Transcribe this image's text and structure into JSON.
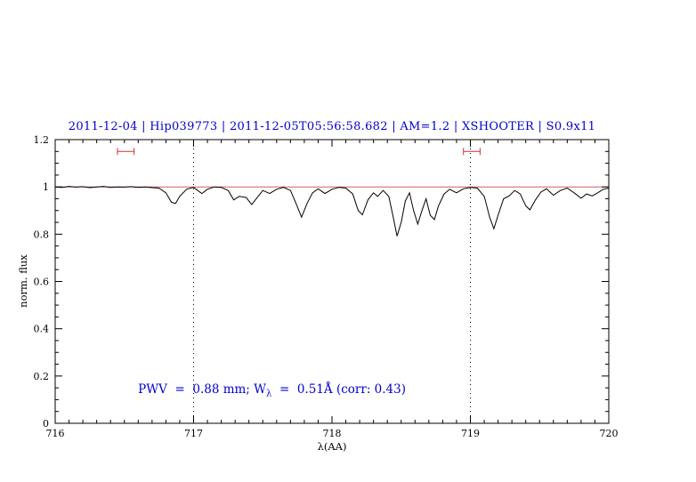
{
  "title": "2011-12-04 | Hip039773 | 2011-12-05T05:56:58.682 | AM=1.2 | XSHOOTER | S0.9x11",
  "annotation": {
    "part1": "PWV  =  0.88 mm; W",
    "sub": "λ",
    "part2": "  =  0.51Å (corr: 0.43)"
  },
  "chart_data": {
    "type": "line",
    "title": "2011-12-04 | Hip039773 | 2011-12-05T05:56:58.682 | AM=1.2 | XSHOOTER | S0.9x11",
    "xlabel": "λ(AA)",
    "ylabel": "norm. flux",
    "xlim": [
      716,
      720
    ],
    "ylim": [
      0,
      1.2
    ],
    "x_ticks": [
      716,
      717,
      718,
      719,
      720
    ],
    "x_tick_labels": [
      "716",
      "717",
      "718",
      "719",
      "720"
    ],
    "y_ticks": [
      0,
      0.2,
      0.4,
      0.6,
      0.8,
      1,
      1.2
    ],
    "y_tick_labels": [
      "0",
      "0.2",
      "0.4",
      "0.6",
      "0.8",
      "1",
      "1.2"
    ],
    "x_minor_step": 0.1,
    "y_minor_step": 0.05,
    "grid": "off",
    "legend": "none",
    "dotted_vlines": [
      717,
      719
    ],
    "continuum_y": 1.0,
    "range_markers": [
      {
        "x1": 716.45,
        "x2": 716.57,
        "y": 1.15
      },
      {
        "x1": 718.95,
        "x2": 719.07,
        "y": 1.15
      }
    ],
    "colors": {
      "title": "#0000cd",
      "annotation": "#0000cd",
      "spectrum": "#000000",
      "continuum": "#cc4444",
      "markers": "#cc3333",
      "axis": "#000000"
    },
    "series": [
      {
        "name": "normalized spectrum",
        "color": "#000000",
        "points": [
          [
            716.0,
            1.0
          ],
          [
            716.05,
            0.998
          ],
          [
            716.1,
            1.002
          ],
          [
            716.15,
            0.999
          ],
          [
            716.2,
            1.001
          ],
          [
            716.25,
            0.997
          ],
          [
            716.3,
            1.0
          ],
          [
            716.35,
            1.002
          ],
          [
            716.4,
            0.998
          ],
          [
            716.45,
            1.0
          ],
          [
            716.5,
            0.999
          ],
          [
            716.55,
            1.001
          ],
          [
            716.6,
            0.998
          ],
          [
            716.65,
            1.0
          ],
          [
            716.7,
            0.997
          ],
          [
            716.75,
            0.995
          ],
          [
            716.8,
            0.975
          ],
          [
            716.84,
            0.935
          ],
          [
            716.87,
            0.93
          ],
          [
            716.9,
            0.96
          ],
          [
            716.95,
            0.99
          ],
          [
            717.0,
            0.998
          ],
          [
            717.03,
            0.985
          ],
          [
            717.06,
            0.972
          ],
          [
            717.1,
            0.99
          ],
          [
            717.15,
            1.0
          ],
          [
            717.2,
            0.998
          ],
          [
            717.25,
            0.985
          ],
          [
            717.29,
            0.945
          ],
          [
            717.33,
            0.96
          ],
          [
            717.38,
            0.955
          ],
          [
            717.42,
            0.925
          ],
          [
            717.46,
            0.955
          ],
          [
            717.5,
            0.985
          ],
          [
            717.55,
            0.972
          ],
          [
            717.6,
            0.99
          ],
          [
            717.65,
            0.998
          ],
          [
            717.7,
            0.985
          ],
          [
            717.74,
            0.93
          ],
          [
            717.78,
            0.872
          ],
          [
            717.82,
            0.93
          ],
          [
            717.86,
            0.975
          ],
          [
            717.9,
            0.992
          ],
          [
            717.95,
            0.972
          ],
          [
            718.0,
            0.99
          ],
          [
            718.05,
            0.998
          ],
          [
            718.1,
            0.995
          ],
          [
            718.15,
            0.97
          ],
          [
            718.19,
            0.9
          ],
          [
            718.22,
            0.882
          ],
          [
            718.26,
            0.945
          ],
          [
            718.3,
            0.975
          ],
          [
            718.33,
            0.96
          ],
          [
            718.37,
            0.985
          ],
          [
            718.41,
            0.96
          ],
          [
            718.44,
            0.88
          ],
          [
            718.47,
            0.792
          ],
          [
            718.5,
            0.85
          ],
          [
            718.53,
            0.94
          ],
          [
            718.56,
            0.975
          ],
          [
            718.59,
            0.9
          ],
          [
            718.62,
            0.843
          ],
          [
            718.65,
            0.9
          ],
          [
            718.68,
            0.95
          ],
          [
            718.71,
            0.88
          ],
          [
            718.74,
            0.862
          ],
          [
            718.77,
            0.92
          ],
          [
            718.81,
            0.97
          ],
          [
            718.85,
            0.99
          ],
          [
            718.9,
            0.975
          ],
          [
            718.95,
            0.992
          ],
          [
            719.0,
            0.998
          ],
          [
            719.05,
            0.995
          ],
          [
            719.1,
            0.96
          ],
          [
            719.14,
            0.87
          ],
          [
            719.17,
            0.823
          ],
          [
            719.2,
            0.88
          ],
          [
            719.24,
            0.95
          ],
          [
            719.28,
            0.962
          ],
          [
            719.32,
            0.985
          ],
          [
            719.36,
            0.97
          ],
          [
            719.4,
            0.92
          ],
          [
            719.43,
            0.903
          ],
          [
            719.47,
            0.945
          ],
          [
            719.51,
            0.978
          ],
          [
            719.55,
            0.992
          ],
          [
            719.6,
            0.965
          ],
          [
            719.65,
            0.985
          ],
          [
            719.7,
            0.995
          ],
          [
            719.75,
            0.975
          ],
          [
            719.8,
            0.952
          ],
          [
            719.84,
            0.97
          ],
          [
            719.88,
            0.962
          ],
          [
            719.92,
            0.975
          ],
          [
            719.96,
            0.99
          ],
          [
            720.0,
            0.995
          ]
        ]
      }
    ]
  }
}
